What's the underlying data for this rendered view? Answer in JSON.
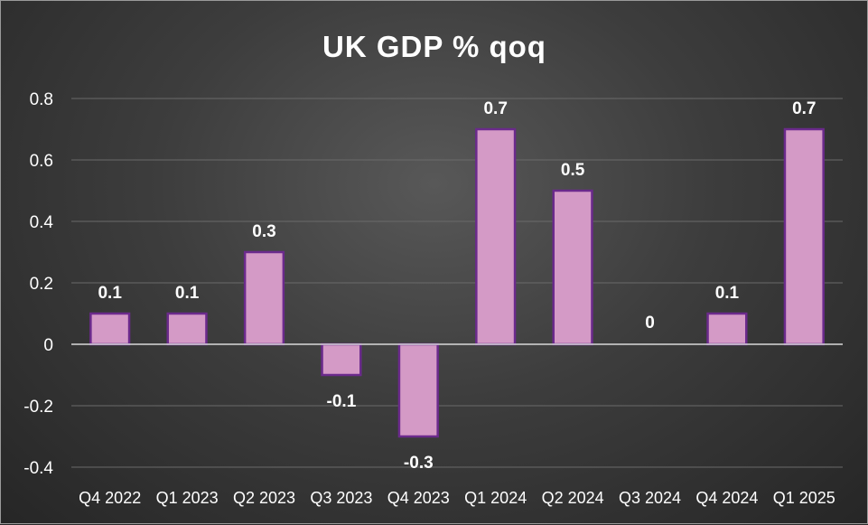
{
  "chart_data": {
    "type": "bar",
    "title": "UK GDP % qoq",
    "xlabel": "",
    "ylabel": "",
    "ylim": [
      -0.4,
      0.8
    ],
    "yticks": [
      "0.8",
      "0.6",
      "0.4",
      "0.2",
      "0",
      "-0.2",
      "-0.4"
    ],
    "ytick_values": [
      0.8,
      0.6,
      0.4,
      0.2,
      0,
      -0.2,
      -0.4
    ],
    "categories": [
      "Q4 2022",
      "Q1 2023",
      "Q2 2023",
      "Q3 2023",
      "Q4 2023",
      "Q1 2024",
      "Q2 2024",
      "Q3 2024",
      "Q4 2024",
      "Q1 2025"
    ],
    "values": [
      0.1,
      0.1,
      0.3,
      -0.1,
      -0.3,
      0.7,
      0.5,
      0,
      0.1,
      0.7
    ],
    "data_labels": [
      "0.1",
      "0.1",
      "0.3",
      "-0.1",
      "-0.3",
      "0.7",
      "0.5",
      "0",
      "0.1",
      "0.7"
    ],
    "grid": true,
    "legend": "none",
    "colors": {
      "bar_fill": "#d49ac6",
      "bar_edge": "#6b2a8c",
      "grid": "#6a6a6a",
      "zero_line": "#d9d9d9",
      "text": "#ffffff"
    }
  }
}
